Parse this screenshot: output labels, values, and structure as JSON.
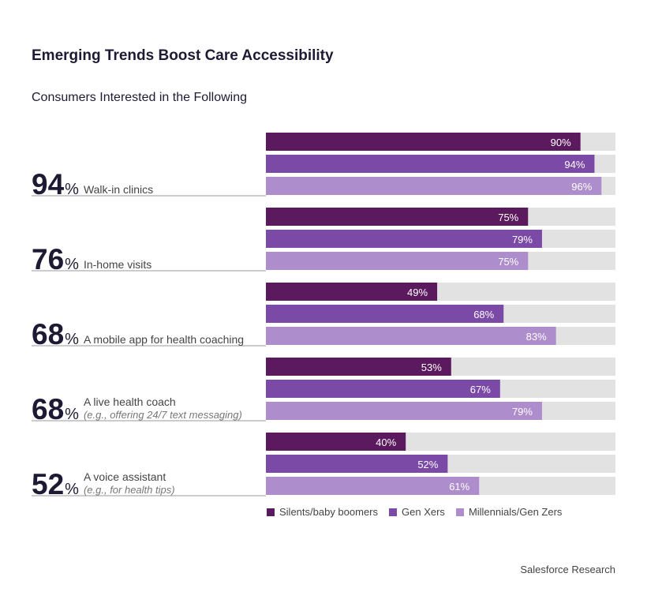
{
  "title": "Emerging Trends Boost Care Accessibility",
  "subtitle": "Consumers Interested in the Following",
  "source": "Salesforce Research",
  "colors": {
    "silents": "#5c1a5e",
    "genx": "#7b4aa6",
    "millennials": "#ad8dcb",
    "track": "#e2e2e2"
  },
  "legend": [
    {
      "name": "Silents/baby boomers",
      "color": "#5c1a5e"
    },
    {
      "name": "Gen Xers",
      "color": "#7b4aa6"
    },
    {
      "name": "Millennials/Gen Zers",
      "color": "#ad8dcb"
    }
  ],
  "chart_data": {
    "type": "bar",
    "orientation": "horizontal",
    "xlim": [
      0,
      100
    ],
    "categories": [
      {
        "total": "94",
        "label": "Walk-in clinics",
        "note": ""
      },
      {
        "total": "76",
        "label": "In-home visits",
        "note": ""
      },
      {
        "total": "68",
        "label": "A mobile app for health coaching",
        "note": ""
      },
      {
        "total": "68",
        "label": "A live health coach",
        "note": "(e.g., offering 24/7 text messaging)"
      },
      {
        "total": "52",
        "label": "A voice assistant",
        "note": "(e.g., for health tips)"
      }
    ],
    "series": [
      {
        "name": "Silents/baby boomers",
        "values": [
          90,
          75,
          49,
          53,
          40
        ]
      },
      {
        "name": "Gen Xers",
        "values": [
          94,
          79,
          68,
          67,
          52
        ]
      },
      {
        "name": "Millennials/Gen Zers",
        "values": [
          96,
          75,
          83,
          79,
          61
        ]
      }
    ]
  }
}
